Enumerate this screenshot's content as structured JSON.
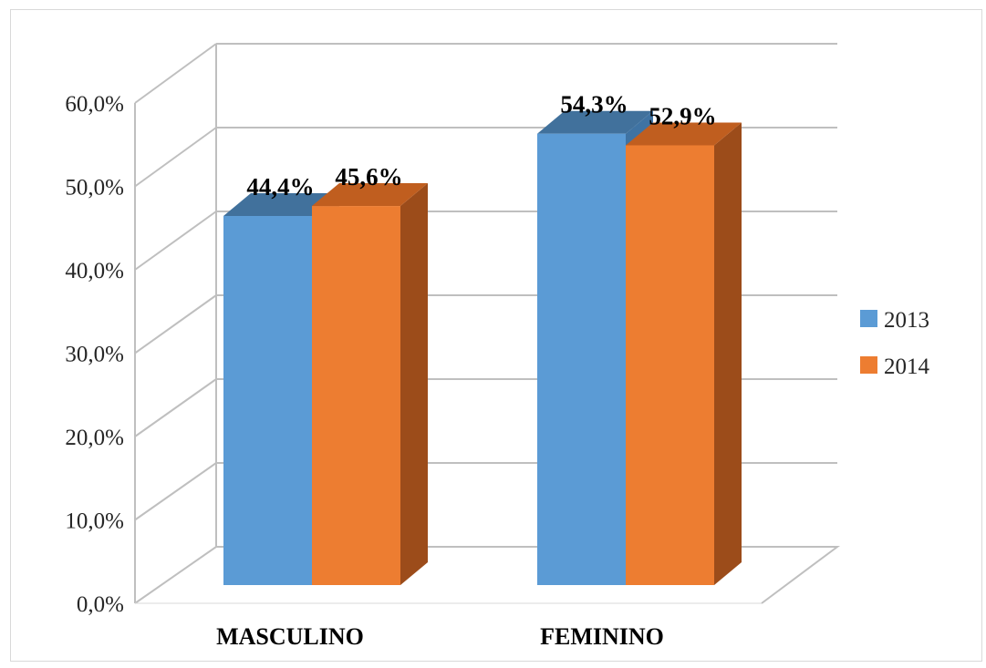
{
  "chart_data": {
    "type": "bar",
    "three_d": true,
    "categories": [
      "MASCULINO",
      "FEMININO"
    ],
    "series": [
      {
        "name": "2013",
        "values": [
          44.4,
          54.3
        ],
        "labels": [
          "44,4%",
          "54,3%"
        ],
        "color": "#5b9bd5",
        "side_color": "#3f73a3",
        "top_color": "#41719c"
      },
      {
        "name": "2014",
        "values": [
          45.6,
          52.9
        ],
        "labels": [
          "45,6%",
          "52,9%"
        ],
        "color": "#ed7d31",
        "side_color": "#9c4c1a",
        "top_color": "#c05e1f"
      }
    ],
    "y_ticks": [
      "0,0%",
      "10,0%",
      "20,0%",
      "30,0%",
      "40,0%",
      "50,0%",
      "60,0%"
    ],
    "ylim": [
      0,
      60
    ],
    "grid": true,
    "legend_position": "right",
    "title": "",
    "xlabel": "",
    "ylabel": ""
  }
}
